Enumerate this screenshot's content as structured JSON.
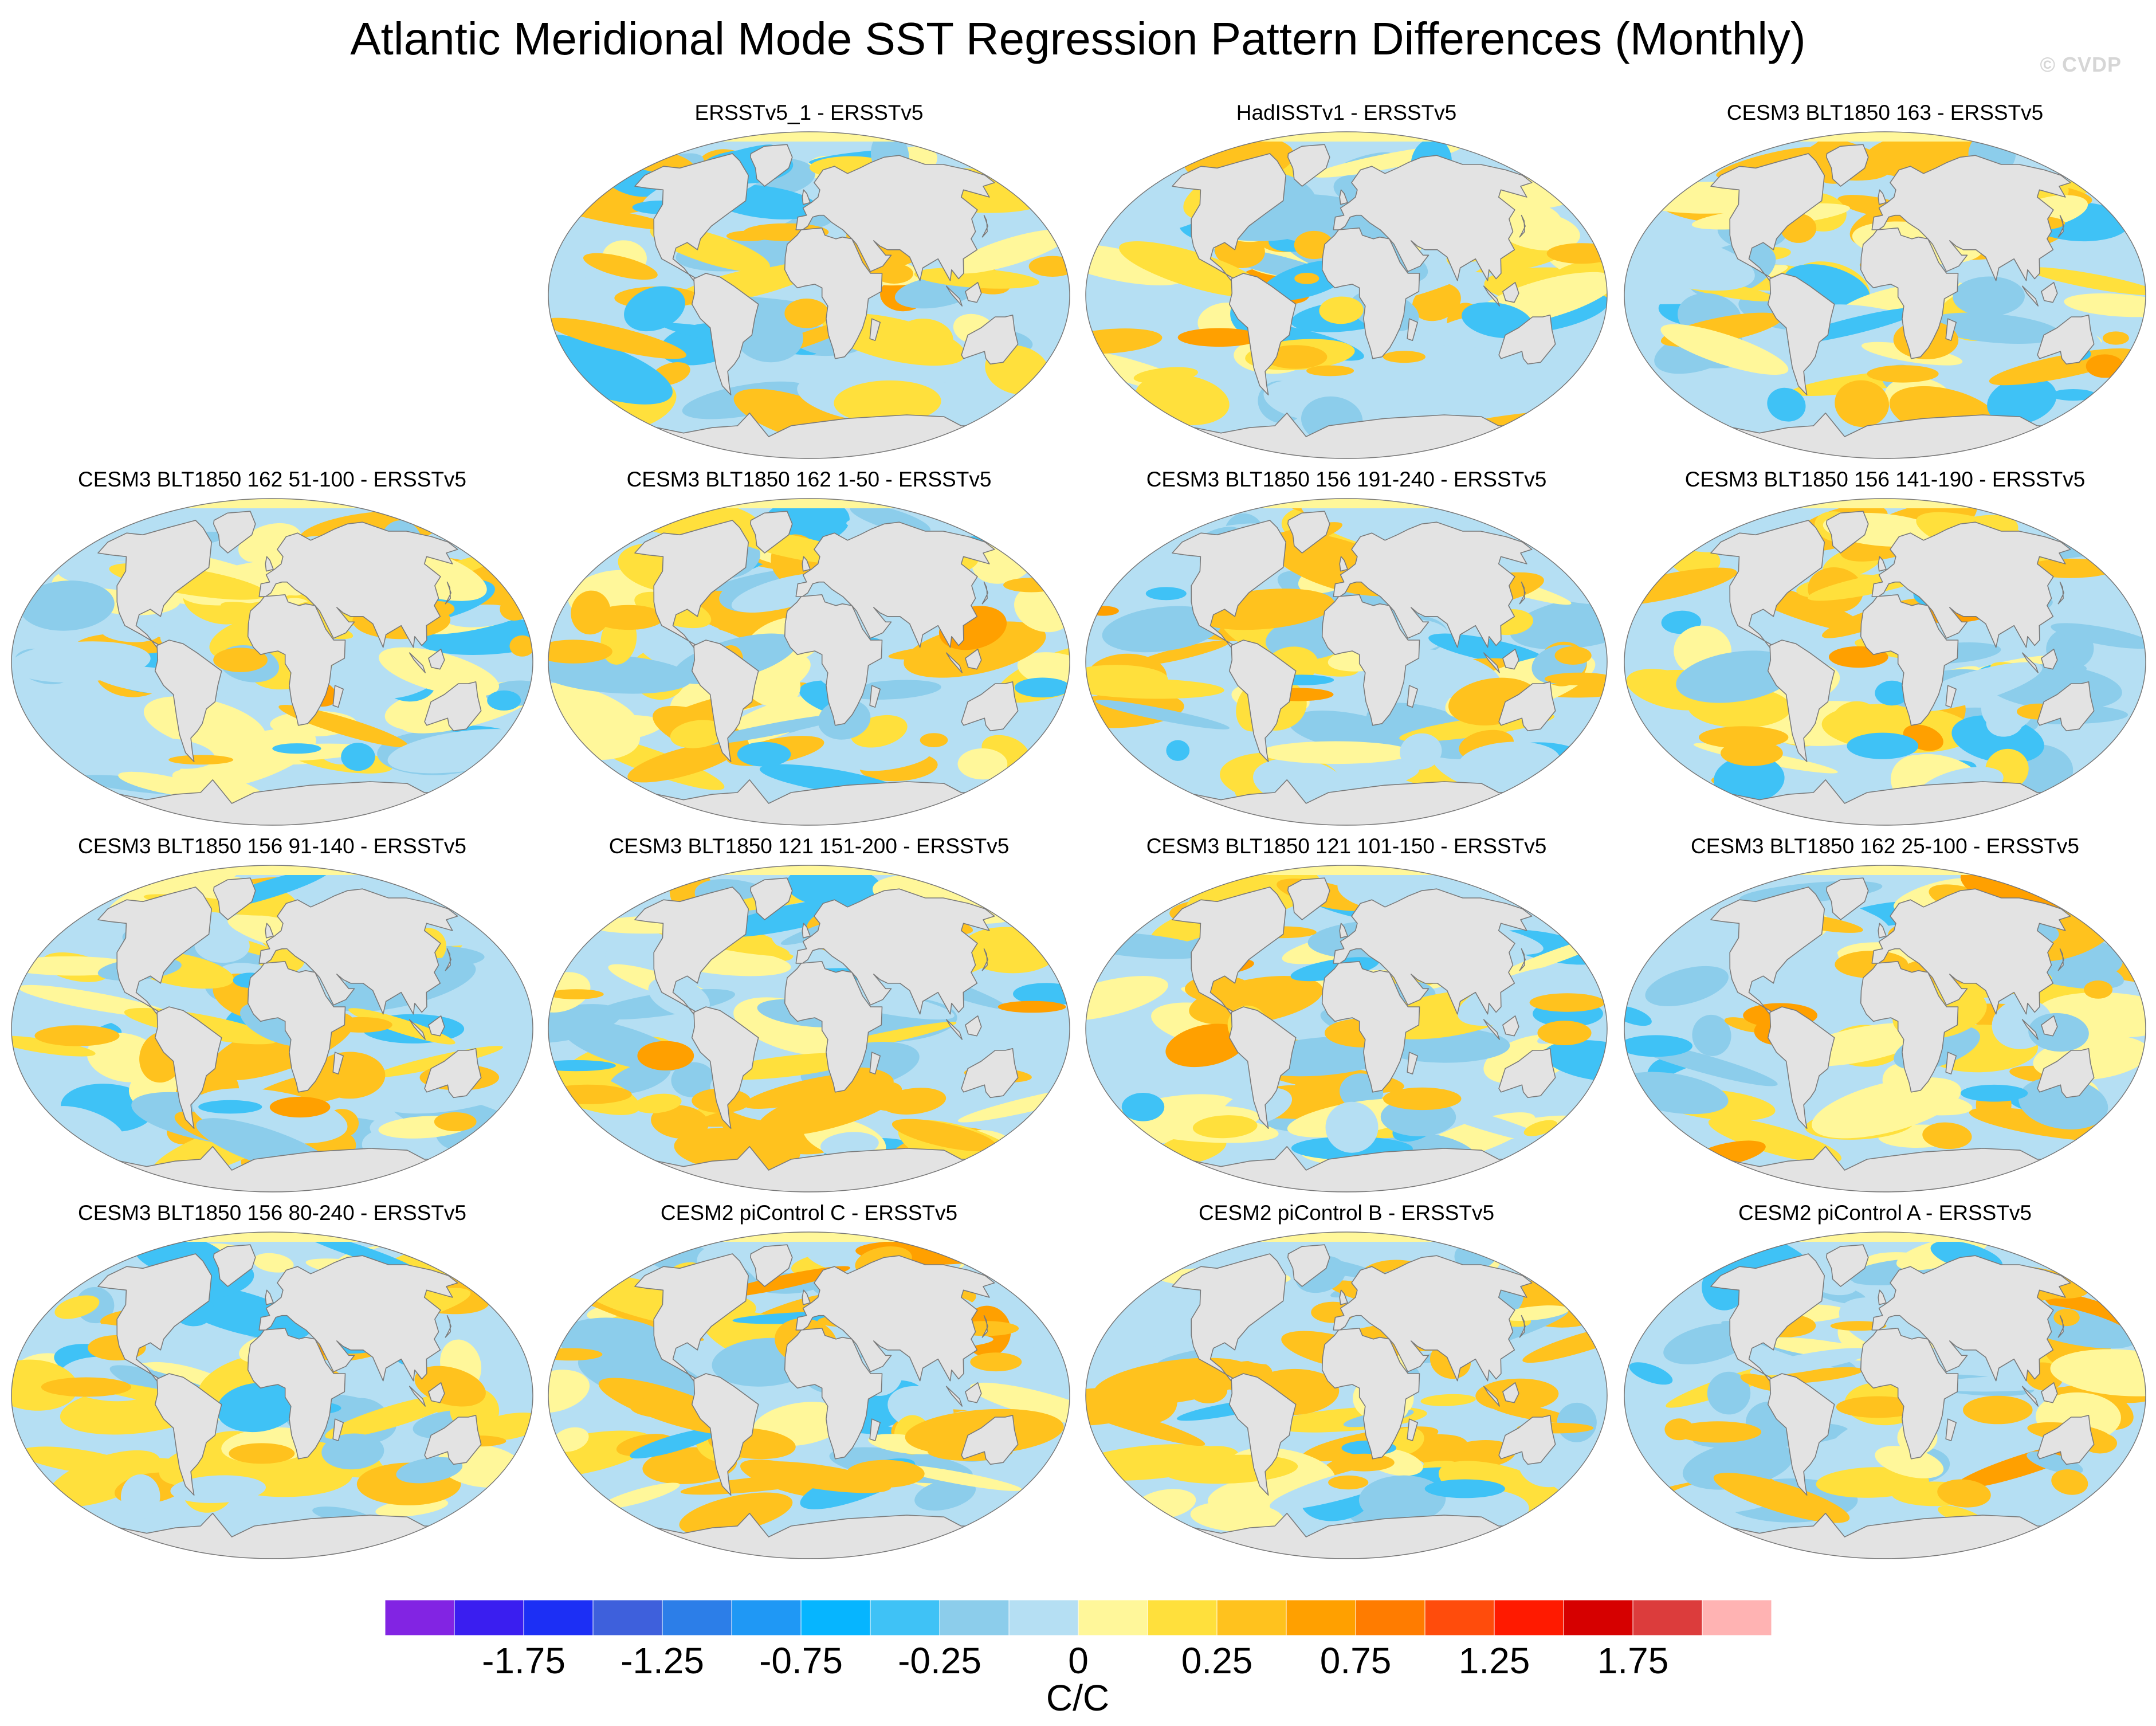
{
  "title": "Atlantic Meridional Mode SST Regression Pattern Differences (Monthly)",
  "credit": "© CVDP",
  "panels": [
    {
      "title": "ERSSTv5_1 - ERSSTv5",
      "col": 1,
      "row": 0,
      "seed": 11
    },
    {
      "title": "HadISSTv1 - ERSSTv5",
      "col": 2,
      "row": 0,
      "seed": 23
    },
    {
      "title": "CESM3 BLT1850 163 - ERSSTv5",
      "col": 3,
      "row": 0,
      "seed": 37
    },
    {
      "title": "CESM3 BLT1850 162 51-100 - ERSSTv5",
      "col": 0,
      "row": 1,
      "seed": 41
    },
    {
      "title": "CESM3 BLT1850 162 1-50 - ERSSTv5",
      "col": 1,
      "row": 1,
      "seed": 53
    },
    {
      "title": "CESM3 BLT1850 156 191-240 - ERSSTv5",
      "col": 2,
      "row": 1,
      "seed": 61
    },
    {
      "title": "CESM3 BLT1850 156 141-190 - ERSSTv5",
      "col": 3,
      "row": 1,
      "seed": 71
    },
    {
      "title": "CESM3 BLT1850 156 91-140 - ERSSTv5",
      "col": 0,
      "row": 2,
      "seed": 83
    },
    {
      "title": "CESM3 BLT1850 121 151-200 - ERSSTv5",
      "col": 1,
      "row": 2,
      "seed": 97
    },
    {
      "title": "CESM3 BLT1850 121 101-150 - ERSSTv5",
      "col": 2,
      "row": 2,
      "seed": 101
    },
    {
      "title": "CESM3 BLT1850 162 25-100 - ERSSTv5",
      "col": 3,
      "row": 2,
      "seed": 113
    },
    {
      "title": "CESM3 BLT1850 156 80-240 - ERSSTv5",
      "col": 0,
      "row": 3,
      "seed": 127
    },
    {
      "title": "CESM2 piControl C - ERSSTv5",
      "col": 1,
      "row": 3,
      "seed": 131
    },
    {
      "title": "CESM2 piControl B - ERSSTv5",
      "col": 2,
      "row": 3,
      "seed": 139
    },
    {
      "title": "CESM2 piControl A - ERSSTv5",
      "col": 3,
      "row": 3,
      "seed": 149
    }
  ],
  "colorbar": {
    "units": "C/C",
    "colors": [
      "#8224e3",
      "#3a1ef0",
      "#1c2ff5",
      "#3e60dc",
      "#2c7ee8",
      "#1f98f5",
      "#06b5ff",
      "#3fc2f6",
      "#8ccdeb",
      "#b5dff3",
      "#fff79a",
      "#ffe03c",
      "#ffc21e",
      "#ffa000",
      "#ff7c00",
      "#ff4c0c",
      "#ff1a00",
      "#d60000",
      "#dc3c3c",
      "#ffb3b3"
    ],
    "labels": [
      "-1.75",
      "-1.25",
      "-0.75",
      "-0.25",
      "0",
      "0.25",
      "0.75",
      "1.25",
      "1.75"
    ]
  },
  "map_colors": {
    "land": "#e3e3e3",
    "coast": "#7a7a7a"
  }
}
